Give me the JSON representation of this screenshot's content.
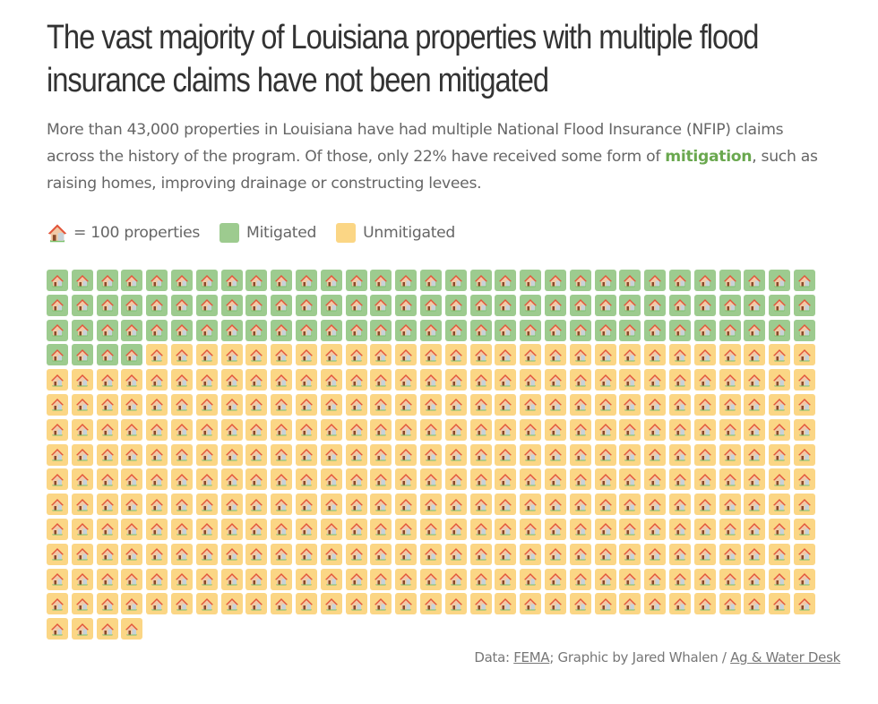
{
  "title": "The vast majority of Louisiana properties with multiple flood insurance claims have not been mitigated",
  "subtitle": {
    "part1": "More than 43,000 properties in Louisiana have had multiple National Flood Insurance (NFIP) claims across the history of the program. Of those, only 22% have received some form of ",
    "highlight": "mitigation",
    "part2": ", such as raising homes, improving drainage or constructing levees."
  },
  "legend": {
    "icon": "house-icon",
    "unit_label": "= 100 properties",
    "items": [
      {
        "label": "Mitigated",
        "color": "#9dcb8f"
      },
      {
        "label": "Unmitigated",
        "color": "#fbd685"
      }
    ]
  },
  "footer": {
    "prefix": "Data: ",
    "source_link": "FEMA",
    "middle": "; Graphic by Jared Whalen / ",
    "publisher_link": "Ag & Water Desk"
  },
  "chart_data": {
    "type": "waffle",
    "title": "The vast majority of Louisiana properties with multiple flood insurance claims have not been mitigated",
    "unit": "100 properties",
    "columns": 31,
    "categories": [
      "Mitigated",
      "Unmitigated"
    ],
    "values": [
      97,
      341
    ],
    "colors": [
      "#9dcb8f",
      "#fbd685"
    ],
    "total_units": 438,
    "mitigated_share_percent": 22
  }
}
